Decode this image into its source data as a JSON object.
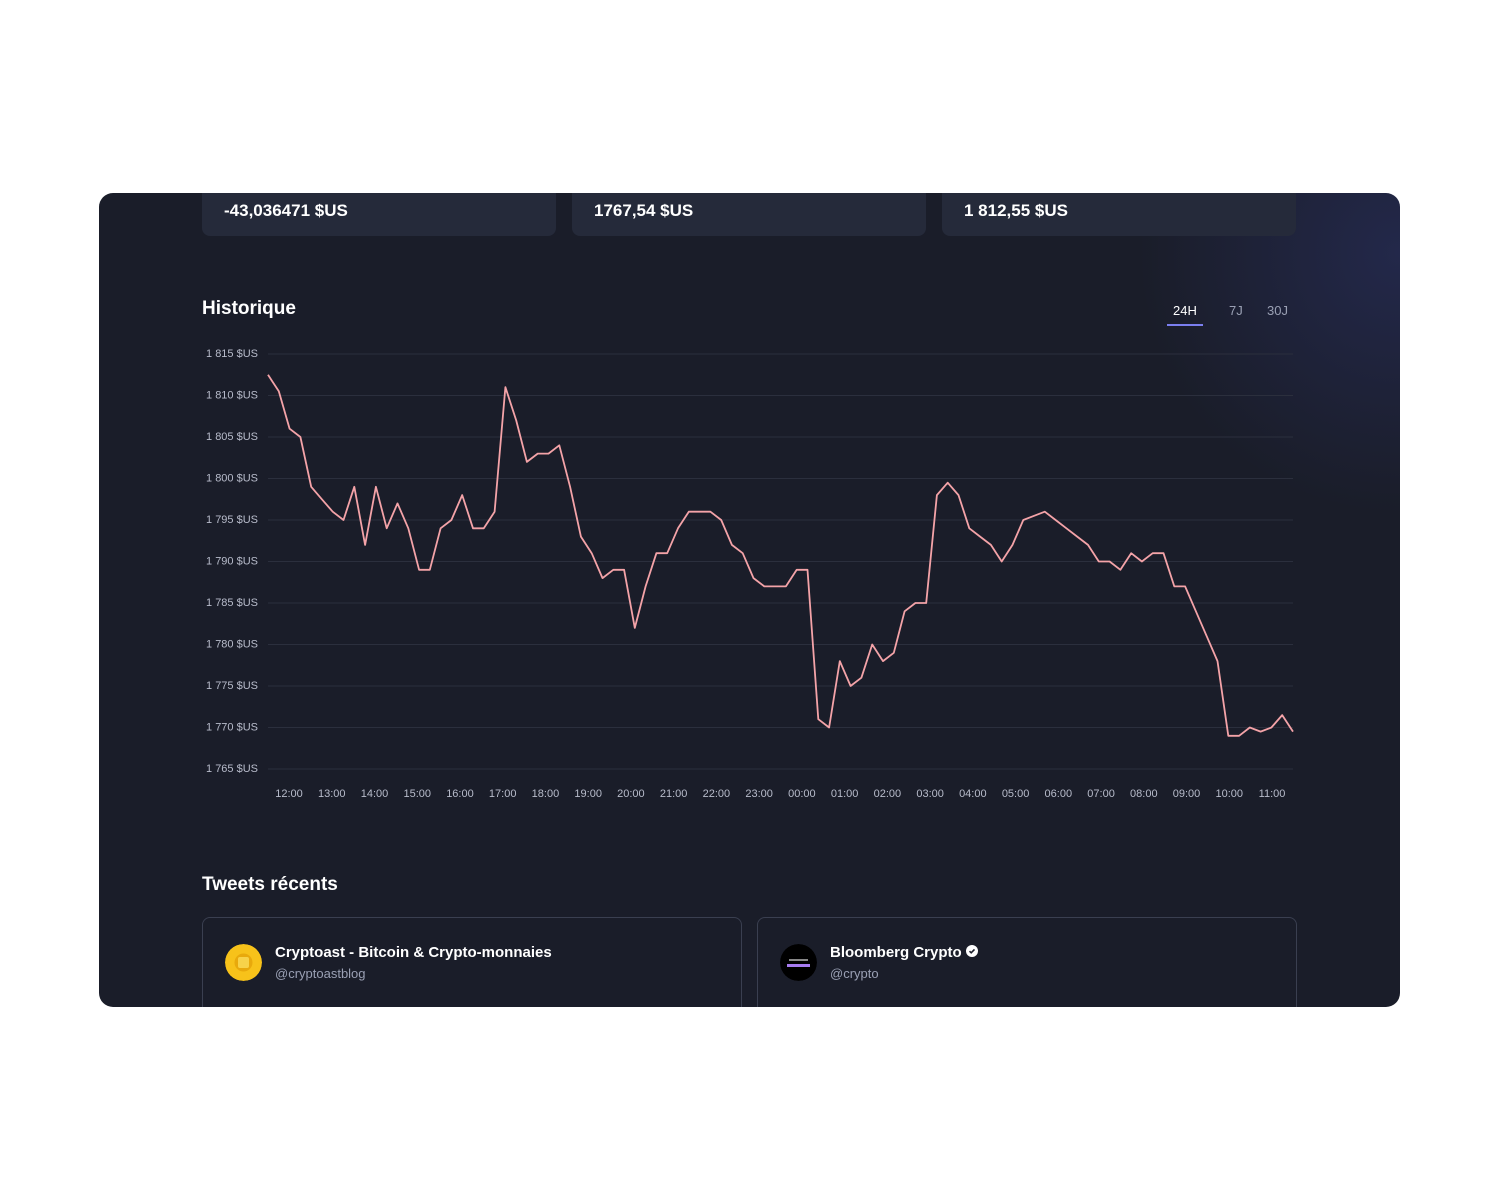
{
  "stats": [
    "-43,036471 $US",
    "1767,54 $US",
    "1 812,55 $US"
  ],
  "history": {
    "title": "Historique",
    "tabs": [
      "24H",
      "7J",
      "30J"
    ],
    "active_tab": 0,
    "chart": {
      "type": "line",
      "color": "#f4a3a8",
      "grid": true,
      "ylim": [
        1765,
        1815
      ],
      "yticks": [
        {
          "value": 1815,
          "label": "1 815 $US"
        },
        {
          "value": 1810,
          "label": "1 810 $US"
        },
        {
          "value": 1805,
          "label": "1 805 $US"
        },
        {
          "value": 1800,
          "label": "1 800 $US"
        },
        {
          "value": 1795,
          "label": "1 795 $US"
        },
        {
          "value": 1790,
          "label": "1 790 $US"
        },
        {
          "value": 1785,
          "label": "1 785 $US"
        },
        {
          "value": 1780,
          "label": "1 780 $US"
        },
        {
          "value": 1775,
          "label": "1 775 $US"
        },
        {
          "value": 1770,
          "label": "1 770 $US"
        },
        {
          "value": 1765,
          "label": "1 765 $US"
        }
      ],
      "categories": [
        "12:00",
        "13:00",
        "14:00",
        "15:00",
        "16:00",
        "17:00",
        "18:00",
        "19:00",
        "20:00",
        "21:00",
        "22:00",
        "23:00",
        "00:00",
        "01:00",
        "02:00",
        "03:00",
        "04:00",
        "05:00",
        "06:00",
        "07:00",
        "08:00",
        "09:00",
        "10:00",
        "11:00"
      ],
      "values": [
        1812.5,
        1810.5,
        1806,
        1805,
        1799,
        1797.5,
        1796,
        1795,
        1799,
        1792,
        1799,
        1794,
        1797,
        1794,
        1789,
        1789,
        1794,
        1795,
        1798,
        1794,
        1794,
        1796,
        1811,
        1807,
        1802,
        1803,
        1803,
        1804,
        1799,
        1793,
        1791,
        1788,
        1789,
        1789,
        1782,
        1787,
        1791,
        1791,
        1794,
        1796,
        1796,
        1796,
        1795,
        1792,
        1791,
        1788,
        1787,
        1787,
        1787,
        1789,
        1789,
        1771,
        1770,
        1778,
        1775,
        1776,
        1780,
        1778,
        1779,
        1784,
        1785,
        1785,
        1798,
        1799.5,
        1798,
        1794,
        1793,
        1792,
        1790,
        1792,
        1795,
        1795.5,
        1796,
        1795,
        1794,
        1793,
        1792,
        1790,
        1790,
        1789,
        1791,
        1790,
        1791,
        1791,
        1787,
        1787,
        1784,
        1781,
        1778,
        1769,
        1769,
        1770,
        1769.5,
        1770,
        1771.5,
        1769.5
      ]
    }
  },
  "tweets": {
    "title": "Tweets récents",
    "accounts": [
      {
        "name": "Cryptoast - Bitcoin & Crypto-monnaies",
        "handle": "@cryptoastblog"
      },
      {
        "name": "Bloomberg Crypto",
        "handle": "@crypto"
      }
    ]
  }
}
